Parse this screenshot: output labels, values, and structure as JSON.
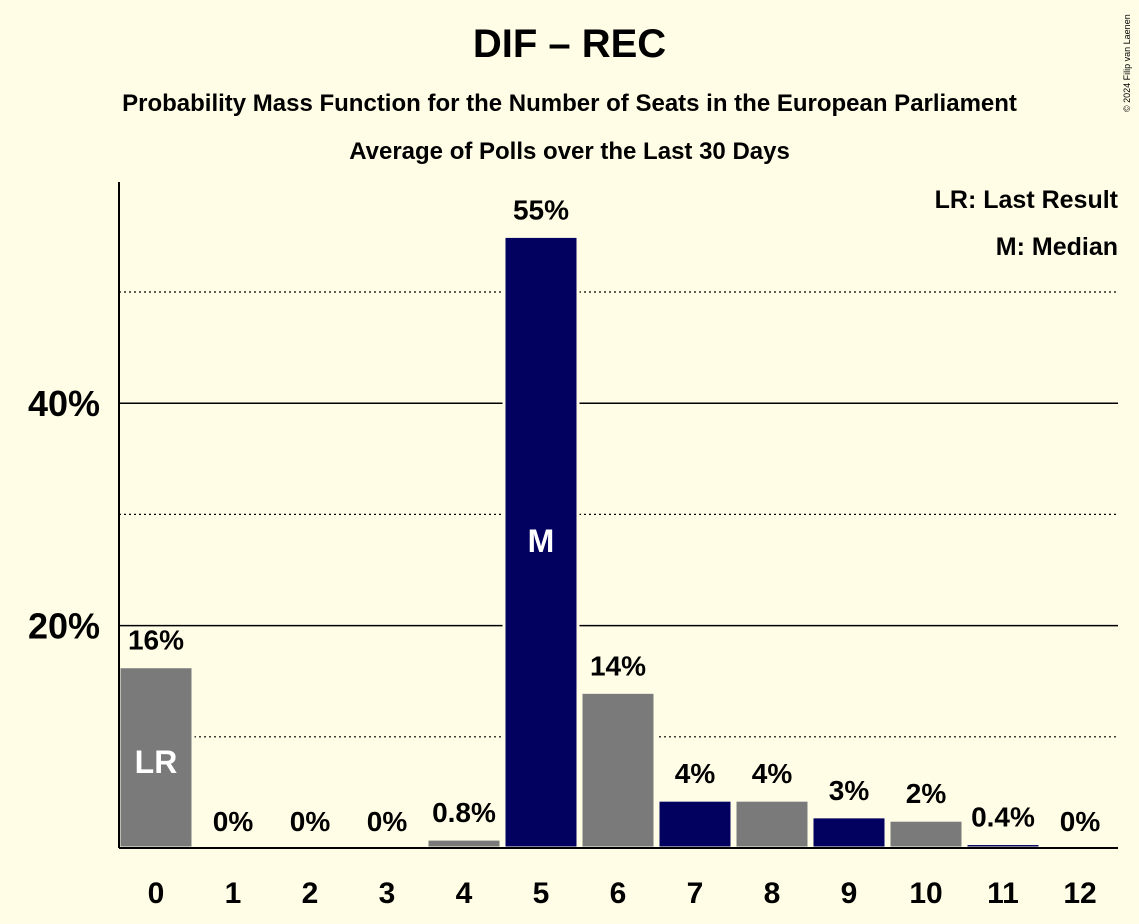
{
  "title": "DIF – REC",
  "subtitle_1": "Probability Mass Function for the Number of Seats in the European Parliament",
  "subtitle_2": "Average of Polls over the Last 30 Days",
  "copyright": "© 2024 Filip van Laenen",
  "legend": {
    "last_result": "LR: Last Result",
    "median": "M: Median"
  },
  "colors": {
    "background": "#fffde6",
    "gray_bar": "#7a7a7a",
    "navy_bar": "#020160"
  },
  "chart_data": {
    "type": "bar",
    "categories": [
      "0",
      "1",
      "2",
      "3",
      "4",
      "5",
      "6",
      "7",
      "8",
      "9",
      "10",
      "11",
      "12"
    ],
    "values": [
      16.3,
      0,
      0,
      0,
      0.8,
      55,
      14,
      4.3,
      4.3,
      2.8,
      2.5,
      0.4,
      0
    ],
    "value_labels": [
      "16%",
      "0%",
      "0%",
      "0%",
      "0.8%",
      "55%",
      "14%",
      "4%",
      "4%",
      "3%",
      "2%",
      "0.4%",
      "0%"
    ],
    "bar_colors": [
      "gray",
      "gray",
      "gray",
      "gray",
      "gray",
      "navy",
      "gray",
      "navy",
      "gray",
      "navy",
      "gray",
      "navy",
      "gray"
    ],
    "bar_markers": {
      "0": "LR",
      "5": "M"
    },
    "ylim": [
      0,
      60
    ],
    "yticks": [
      20,
      40
    ],
    "ytick_labels": [
      "20%",
      "40%"
    ],
    "solid_gridlines": [
      20,
      40
    ],
    "dotted_gridlines": [
      10,
      30,
      50
    ],
    "xlabel": "",
    "ylabel": "",
    "legend_position": "top-right"
  }
}
